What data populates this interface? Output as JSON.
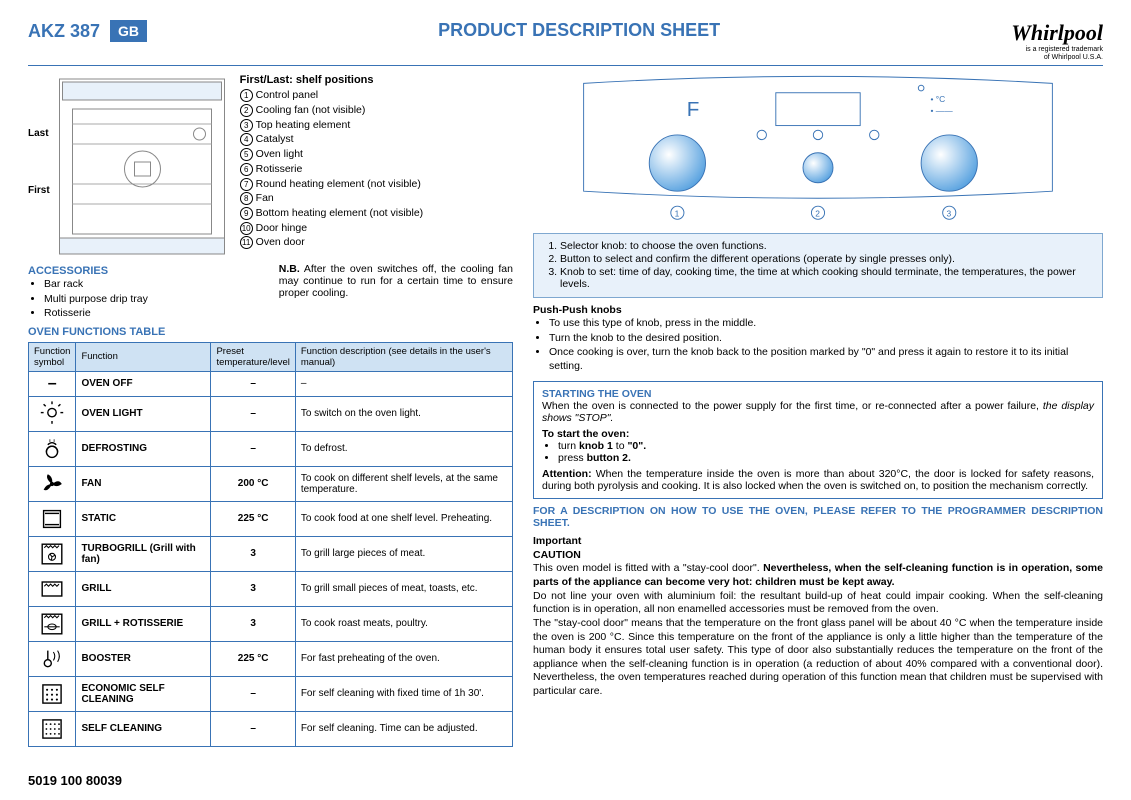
{
  "header": {
    "model": "AKZ 387",
    "country": "GB",
    "title": "PRODUCT DESCRIPTION SHEET",
    "brand": "Whirlpool",
    "brand_sub1": "is a registered trademark",
    "brand_sub2": "of Whirlpool U.S.A."
  },
  "shelf_title": "First/Last: shelf positions",
  "side_last": "Last",
  "side_first": "First",
  "parts": [
    "Control panel",
    "Cooling fan (not visible)",
    "Top heating element",
    "Catalyst",
    "Oven light",
    "Rotisserie",
    "Round heating element (not visible)",
    "Fan",
    "Bottom heating element (not visible)",
    "Door hinge",
    "Oven door"
  ],
  "accessories": {
    "head": "ACCESSORIES",
    "items": [
      "Bar rack",
      "Multi purpose drip tray",
      "Rotisserie"
    ]
  },
  "nb": {
    "label": "N.B.",
    "text": " After the oven switches off, the cooling fan may continue to run for a certain time to ensure proper cooling."
  },
  "functions_head": "OVEN FUNCTIONS TABLE",
  "table": {
    "headers": [
      "Function symbol",
      "Function",
      "Preset temperature/level",
      "Function description (see details in the user's manual)"
    ],
    "rows": [
      {
        "sym": "–",
        "fn": "OVEN OFF",
        "temp": "–",
        "desc": "–"
      },
      {
        "sym": "light",
        "fn": "OVEN LIGHT",
        "temp": "–",
        "desc": "To switch on the oven light."
      },
      {
        "sym": "defrost",
        "fn": "DEFROSTING",
        "temp": "–",
        "desc": "To defrost."
      },
      {
        "sym": "fan",
        "fn": "FAN",
        "temp": "200 °C",
        "desc": "To cook on different shelf levels, at the same temperature."
      },
      {
        "sym": "static",
        "fn": "STATIC",
        "temp": "225 °C",
        "desc": "To cook food at one shelf level. Preheating."
      },
      {
        "sym": "turbogrill",
        "fn": "TURBOGRILL (Grill with fan)",
        "temp": "3",
        "desc": "To grill large pieces of meat."
      },
      {
        "sym": "grill",
        "fn": "GRILL",
        "temp": "3",
        "desc": "To grill small pieces of meat, toasts, etc."
      },
      {
        "sym": "grillrot",
        "fn": "GRILL + ROTISSERIE",
        "temp": "3",
        "desc": "To cook roast meats, poultry."
      },
      {
        "sym": "booster",
        "fn": "BOOSTER",
        "temp": "225 °C",
        "desc": "For fast preheating of the oven."
      },
      {
        "sym": "ecoselfclean",
        "fn": "ECONOMIC SELF CLEANING",
        "temp": "–",
        "desc": "For self cleaning with fixed time of 1h 30'."
      },
      {
        "sym": "selfclean",
        "fn": "SELF CLEANING",
        "temp": "–",
        "desc": "For self cleaning. Time can be adjusted."
      }
    ]
  },
  "panel": {
    "items": [
      {
        "n": "1.",
        "b": "",
        "t": "Selector knob: to choose the oven functions."
      },
      {
        "n": "2.",
        "b": "",
        "t": "Button to select and confirm the different operations (operate by single presses only)."
      },
      {
        "n": "3.",
        "b": "",
        "t": "Knob to set: time of day, cooking time, the time at which cooking should terminate, the temperatures, the power levels."
      }
    ]
  },
  "push": {
    "head": "Push-Push knobs",
    "items": [
      "To use this type of knob, press in the middle.",
      "Turn the knob to the desired position.",
      "Once cooking is over, turn the knob back to the position marked by \"0\" and press it again to restore it to its initial setting."
    ]
  },
  "start": {
    "head": "STARTING THE OVEN",
    "p1a": "When the oven is connected to the power supply for the first time, or re-connected after a power failure, ",
    "p1b": "the display shows \"STOP\".",
    "sub": "To start the oven:",
    "b1a": "turn ",
    "b1b": "knob 1",
    "b1c": " to ",
    "b1d": "\"0\".",
    "b2a": "press ",
    "b2b": "button 2.",
    "attn_label": "Attention:",
    "attn": " When the temperature inside the oven is more than about 320°C, the door is locked for safety reasons, during both pyrolysis and cooking. It is also locked when the oven is switched on, to position the mechanism correctly."
  },
  "ref": "FOR A DESCRIPTION ON HOW TO USE THE OVEN, PLEASE REFER TO THE PROGRAMMER DESCRIPTION SHEET.",
  "important": {
    "h1": "Important",
    "h2": "CAUTION",
    "p1a": "This oven model is fitted with a \"stay-cool door\". ",
    "p1b": "Nevertheless, when the self-cleaning function is in operation, some parts of the appliance can become very hot: children must be kept away.",
    "p2": "Do not line your oven with aluminium foil: the resultant build-up of heat could impair cooking. When the self-cleaning function is in operation, all non enamelled accessories must be removed from the oven.",
    "p3": "The \"stay-cool door\" means that the temperature on the front glass panel will be about 40 °C when the temperature inside the oven is 200 °C. Since this temperature on the front of the appliance is only a little higher than the temperature of the human body it ensures total user safety. This type of door also substantially reduces the temperature on the front of the appliance when the self-cleaning function is in operation (a reduction of about 40% compared with a conventional door). Nevertheless, the oven temperatures reached during operation of this function mean that children must be supervised with particular care."
  },
  "footer": "5019 100 80039",
  "colors": {
    "blue": "#3973b5",
    "lightblue": "#cfe2f3",
    "panelblue": "#e8f1fa",
    "knob_grad_a": "#5aa3e0",
    "knob_grad_b": "#ffffff"
  },
  "control_panel_letter": "F"
}
